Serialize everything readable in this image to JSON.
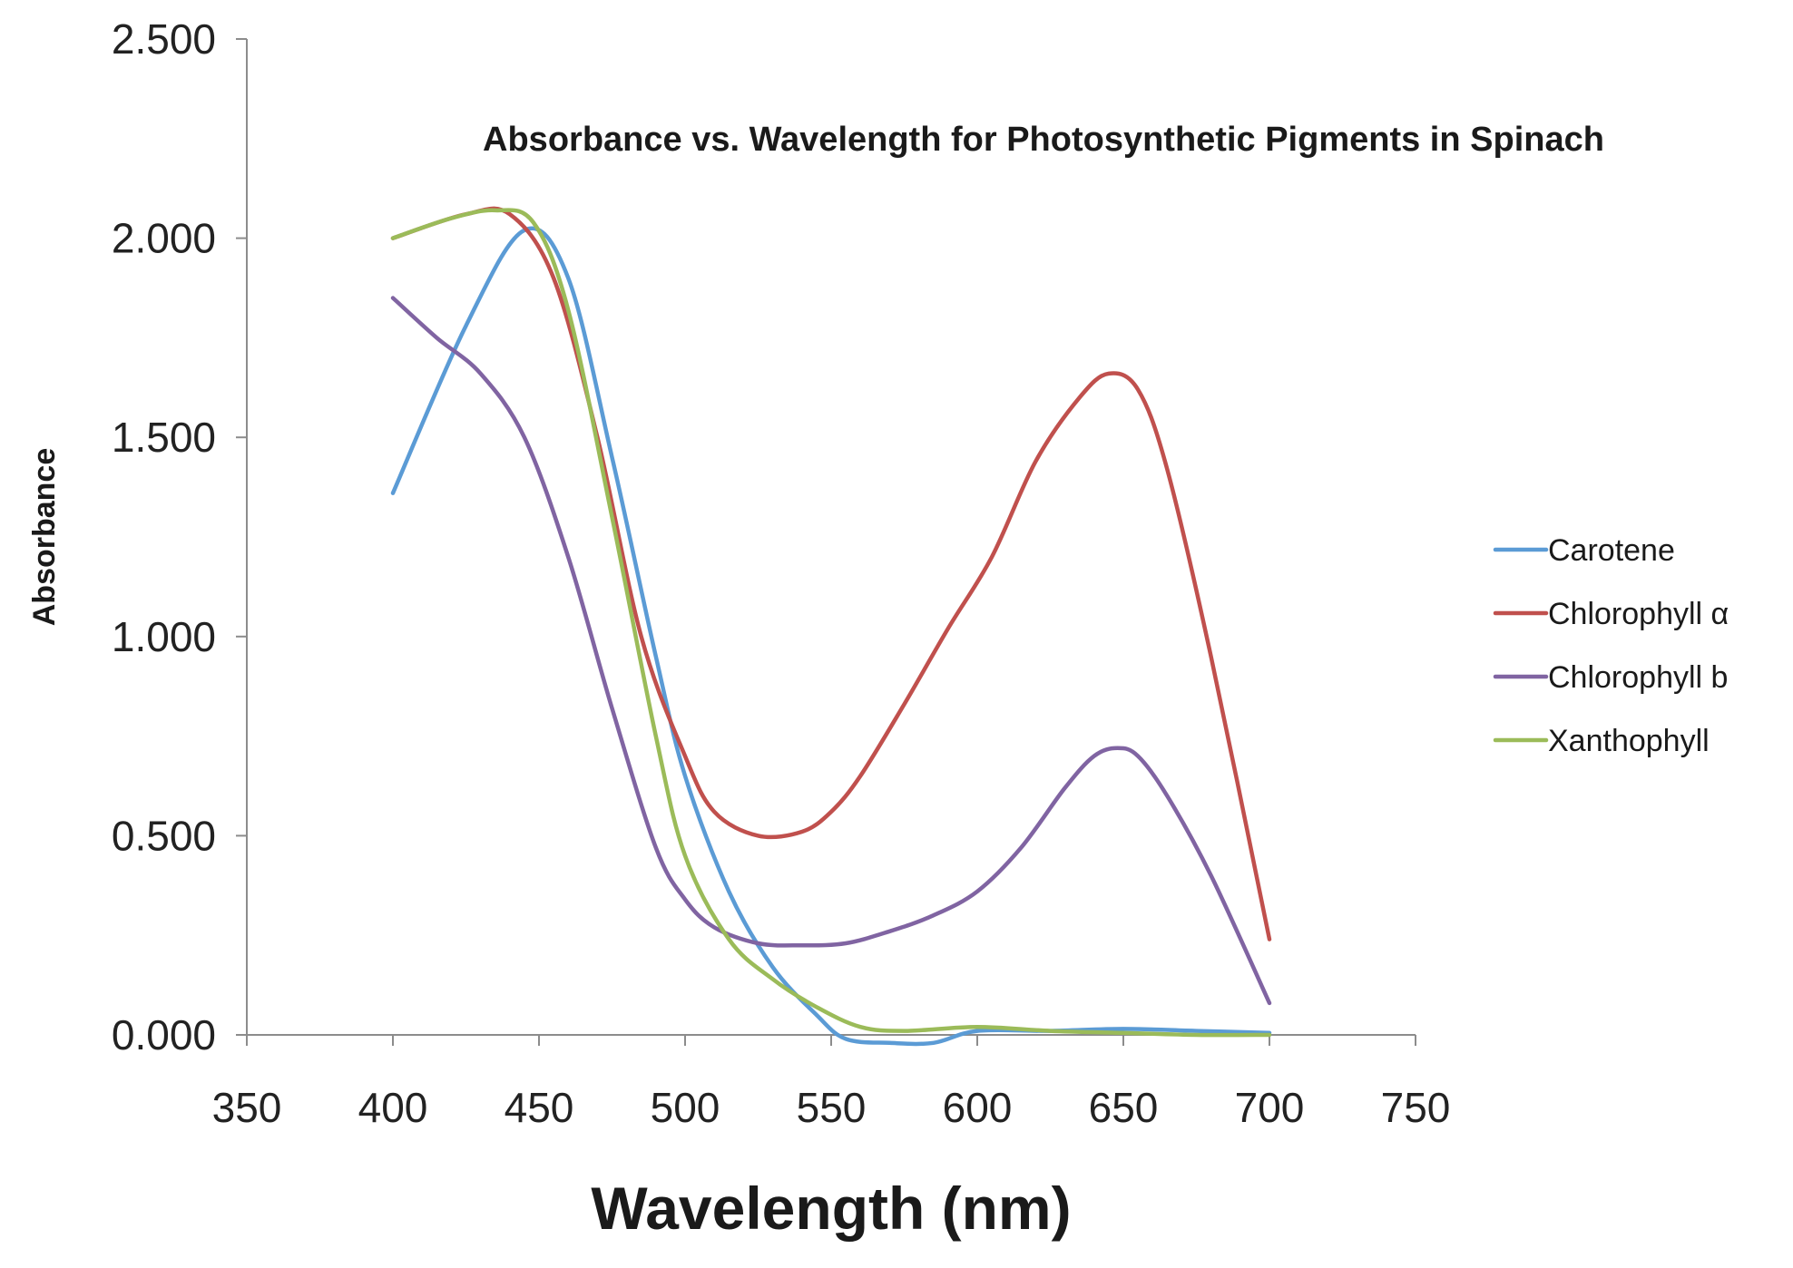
{
  "chart_data": {
    "type": "line",
    "title": "Absorbance vs. Wavelength for Photosynthetic Pigments in Spinach",
    "xlabel": "Wavelength (nm)",
    "ylabel": "Absorbance",
    "xlim": [
      350,
      750
    ],
    "ylim": [
      0,
      2.5
    ],
    "x_ticks": [
      350,
      400,
      450,
      500,
      550,
      600,
      650,
      700,
      750
    ],
    "x_tick_labels": [
      "350",
      "400",
      "450",
      "500",
      "550",
      "600",
      "650",
      "700",
      "750"
    ],
    "y_ticks": [
      0,
      0.5,
      1,
      1.5,
      2,
      2.5
    ],
    "y_tick_labels": [
      "0.000",
      "0.500",
      "1.000",
      "1.500",
      "2.000",
      "2.500"
    ],
    "grid": false,
    "legend_position": "right",
    "series": [
      {
        "name": "Carotene",
        "color": "#5b9bd5",
        "x": [
          400,
          425,
          445,
          460,
          475,
          490,
          500,
          515,
          530,
          545,
          555,
          570,
          585,
          600,
          625,
          650,
          675,
          700
        ],
        "values": [
          1.36,
          1.78,
          2.02,
          1.9,
          1.45,
          0.95,
          0.65,
          0.36,
          0.17,
          0.05,
          -0.01,
          -0.02,
          -0.02,
          0.01,
          0.01,
          0.015,
          0.01,
          0.005
        ]
      },
      {
        "name": "Chlorophyll α",
        "color": "#c0504d",
        "x": [
          400,
          425,
          440,
          455,
          470,
          485,
          500,
          510,
          525,
          540,
          550,
          560,
          575,
          590,
          605,
          620,
          635,
          645,
          655,
          665,
          680,
          700
        ],
        "values": [
          2.0,
          2.06,
          2.06,
          1.9,
          1.5,
          1.0,
          0.7,
          0.56,
          0.5,
          0.51,
          0.56,
          0.65,
          0.83,
          1.02,
          1.2,
          1.44,
          1.6,
          1.66,
          1.62,
          1.42,
          0.95,
          0.24
        ]
      },
      {
        "name": "Chlorophyll b",
        "color": "#8064a2",
        "x": [
          400,
          415,
          430,
          445,
          460,
          475,
          490,
          500,
          510,
          525,
          540,
          555,
          570,
          585,
          600,
          615,
          630,
          640,
          648,
          655,
          665,
          680,
          700
        ],
        "values": [
          1.85,
          1.75,
          1.66,
          1.5,
          1.2,
          0.82,
          0.47,
          0.34,
          0.27,
          0.23,
          0.225,
          0.23,
          0.26,
          0.3,
          0.36,
          0.47,
          0.62,
          0.7,
          0.72,
          0.7,
          0.6,
          0.4,
          0.08
        ]
      },
      {
        "name": "Xanthophyll",
        "color": "#9bbb59",
        "x": [
          400,
          420,
          435,
          448,
          460,
          475,
          490,
          500,
          515,
          530,
          545,
          560,
          575,
          600,
          625,
          650,
          675,
          700
        ],
        "values": [
          2.0,
          2.05,
          2.07,
          2.04,
          1.82,
          1.3,
          0.75,
          0.45,
          0.24,
          0.14,
          0.07,
          0.02,
          0.01,
          0.02,
          0.01,
          0.005,
          0.0,
          0.0
        ]
      }
    ]
  }
}
